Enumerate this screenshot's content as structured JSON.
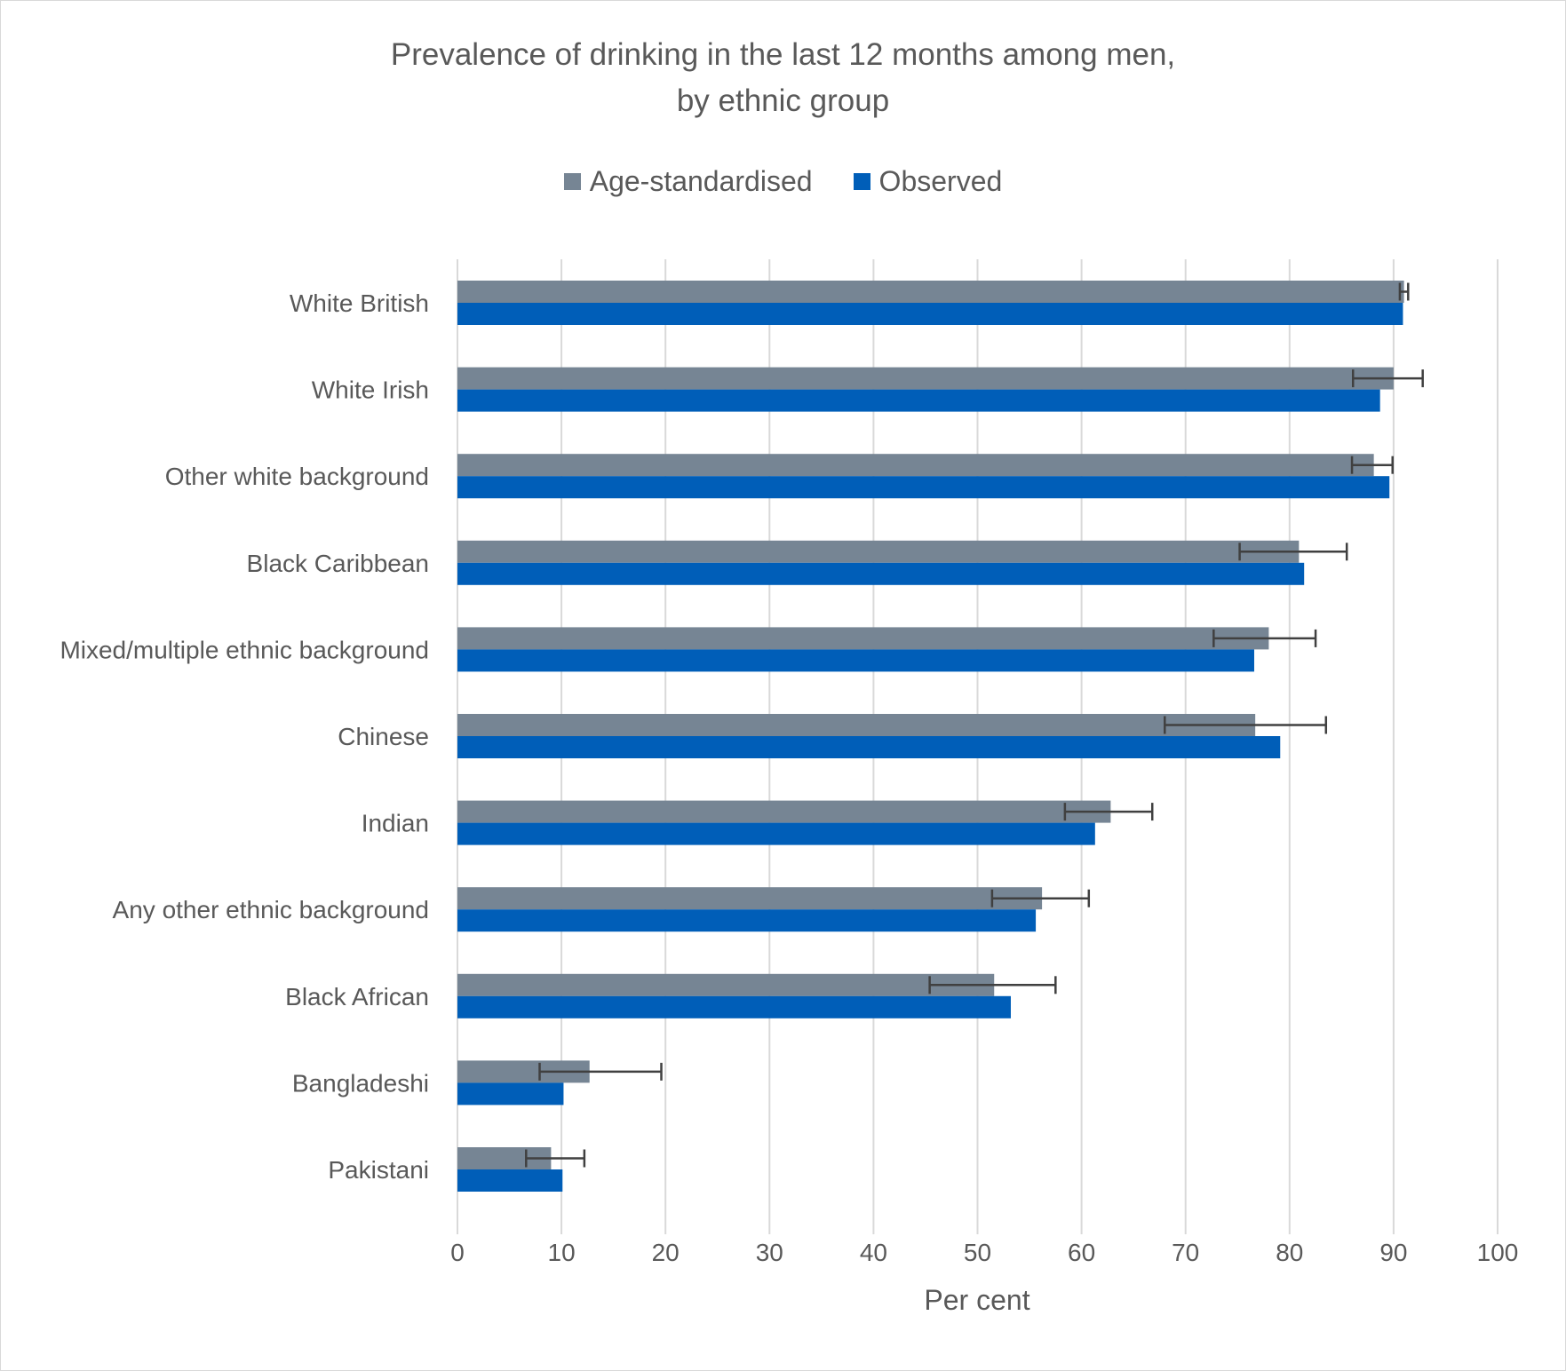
{
  "chart_data": {
    "type": "bar",
    "orientation": "horizontal",
    "title_lines": [
      "Prevalence of drinking in the last 12 months among men,",
      "by ethnic group"
    ],
    "xlabel": "Per cent",
    "ylabel": "",
    "xlim": [
      0,
      100
    ],
    "xticks": [
      "0",
      "10",
      "20",
      "30",
      "40",
      "50",
      "60",
      "70",
      "80",
      "90",
      "100"
    ],
    "grid": true,
    "legend_position": "top",
    "categories": [
      "White British",
      "White Irish",
      "Other white background",
      "Black Caribbean",
      "Mixed/multiple ethnic background",
      "Chinese",
      "Indian",
      "Any other ethnic background",
      "Black African",
      "Bangladeshi",
      "Pakistani"
    ],
    "series": [
      {
        "name": "Age-standardised",
        "color": "#768594",
        "values": [
          91.0,
          90.0,
          88.1,
          80.9,
          78.0,
          76.7,
          62.8,
          56.2,
          51.6,
          12.7,
          9.0
        ],
        "error_low": [
          90.6,
          86.1,
          86.0,
          75.2,
          72.7,
          68.0,
          58.4,
          51.4,
          45.4,
          7.9,
          6.6
        ],
        "error_high": [
          91.4,
          92.8,
          89.9,
          85.5,
          82.5,
          83.5,
          66.8,
          60.7,
          57.5,
          19.6,
          12.2
        ]
      },
      {
        "name": "Observed",
        "color": "#005EB8",
        "values": [
          90.9,
          88.7,
          89.6,
          81.4,
          76.6,
          79.1,
          61.3,
          55.6,
          53.2,
          10.2,
          10.1
        ]
      }
    ]
  }
}
